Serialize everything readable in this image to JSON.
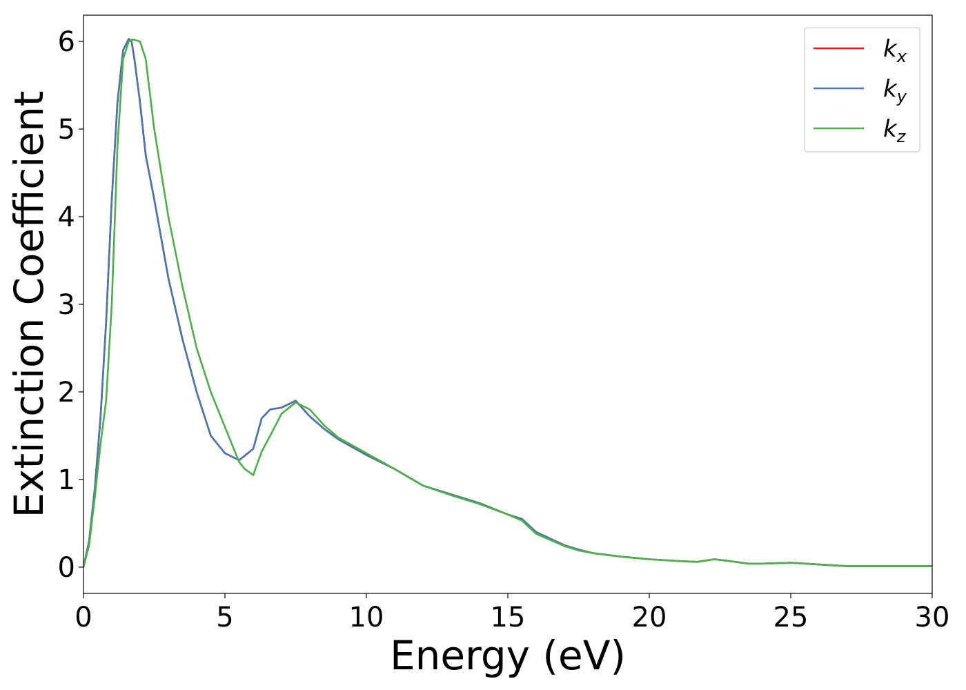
{
  "chart_data": {
    "type": "line",
    "title": "",
    "xlabel": "Energy (eV)",
    "ylabel": "Extinction Coefficient",
    "xlim": [
      0,
      30
    ],
    "ylim": [
      -0.3,
      6.3
    ],
    "xticks": [
      0,
      5,
      10,
      15,
      20,
      25,
      30
    ],
    "yticks": [
      0,
      1,
      2,
      3,
      4,
      5,
      6
    ],
    "grid": false,
    "legend_position": "top-right",
    "series": [
      {
        "name": "k_x",
        "label_base": "k",
        "label_sub": "x",
        "color": "#e41a1c",
        "x": [
          0,
          0.2,
          0.4,
          0.6,
          0.8,
          1.0,
          1.2,
          1.4,
          1.6,
          1.7,
          1.8,
          2.0,
          2.2,
          2.5,
          3.0,
          3.5,
          4.0,
          4.5,
          5.0,
          5.5,
          6.0,
          6.3,
          6.6,
          7.0,
          7.5,
          8.0,
          8.5,
          9.0,
          10.0,
          11.0,
          12.0,
          13.0,
          14.0,
          15.0,
          15.5,
          16.0,
          17.0,
          17.5,
          18.0,
          19.0,
          20.0,
          21.0,
          21.7,
          22.3,
          22.8,
          23.5,
          24.0,
          25.0,
          25.5,
          26.0,
          27.0,
          28.0,
          30.0
        ],
        "y": [
          0.0,
          0.3,
          0.9,
          1.7,
          2.8,
          4.2,
          5.3,
          5.9,
          6.03,
          6.0,
          5.8,
          5.3,
          4.7,
          4.2,
          3.3,
          2.6,
          2.0,
          1.5,
          1.3,
          1.22,
          1.35,
          1.7,
          1.8,
          1.82,
          1.9,
          1.72,
          1.58,
          1.46,
          1.28,
          1.12,
          0.93,
          0.83,
          0.73,
          0.6,
          0.55,
          0.4,
          0.25,
          0.2,
          0.16,
          0.12,
          0.09,
          0.07,
          0.06,
          0.09,
          0.07,
          0.04,
          0.04,
          0.05,
          0.04,
          0.03,
          0.01,
          0.01,
          0.01
        ]
      },
      {
        "name": "k_y",
        "label_base": "k",
        "label_sub": "y",
        "color": "#4a76b0",
        "x": [
          0,
          0.2,
          0.4,
          0.6,
          0.8,
          1.0,
          1.2,
          1.4,
          1.6,
          1.7,
          1.8,
          2.0,
          2.2,
          2.5,
          3.0,
          3.5,
          4.0,
          4.5,
          5.0,
          5.5,
          6.0,
          6.3,
          6.6,
          7.0,
          7.5,
          8.0,
          8.5,
          9.0,
          10.0,
          11.0,
          12.0,
          13.0,
          14.0,
          15.0,
          15.5,
          16.0,
          17.0,
          17.5,
          18.0,
          19.0,
          20.0,
          21.0,
          21.7,
          22.3,
          22.8,
          23.5,
          24.0,
          25.0,
          25.5,
          26.0,
          27.0,
          28.0,
          30.0
        ],
        "y": [
          0.0,
          0.3,
          0.9,
          1.7,
          2.8,
          4.2,
          5.3,
          5.9,
          6.03,
          6.0,
          5.8,
          5.3,
          4.7,
          4.2,
          3.3,
          2.6,
          2.0,
          1.5,
          1.3,
          1.22,
          1.35,
          1.7,
          1.8,
          1.82,
          1.9,
          1.72,
          1.58,
          1.46,
          1.28,
          1.12,
          0.93,
          0.83,
          0.73,
          0.6,
          0.55,
          0.4,
          0.25,
          0.2,
          0.16,
          0.12,
          0.09,
          0.07,
          0.06,
          0.09,
          0.07,
          0.04,
          0.04,
          0.05,
          0.04,
          0.03,
          0.01,
          0.01,
          0.01
        ]
      },
      {
        "name": "k_z",
        "label_base": "k",
        "label_sub": "z",
        "color": "#4daf4a",
        "x": [
          0,
          0.2,
          0.4,
          0.6,
          0.8,
          1.0,
          1.2,
          1.4,
          1.6,
          1.7,
          1.8,
          2.0,
          2.2,
          2.5,
          3.0,
          3.5,
          4.0,
          4.5,
          5.0,
          5.5,
          5.7,
          6.0,
          6.3,
          6.6,
          7.0,
          7.5,
          8.0,
          8.5,
          9.0,
          10.0,
          11.0,
          12.0,
          13.0,
          14.0,
          15.0,
          15.5,
          16.0,
          17.0,
          17.5,
          18.0,
          19.0,
          20.0,
          21.0,
          21.7,
          22.3,
          22.8,
          23.5,
          24.0,
          25.0,
          25.5,
          26.0,
          27.0,
          28.0,
          30.0
        ],
        "y": [
          0.0,
          0.25,
          0.8,
          1.4,
          1.9,
          3.0,
          4.8,
          5.8,
          6.0,
          6.02,
          6.02,
          6.0,
          5.8,
          5.0,
          4.0,
          3.2,
          2.5,
          2.0,
          1.6,
          1.2,
          1.12,
          1.05,
          1.32,
          1.5,
          1.75,
          1.88,
          1.8,
          1.62,
          1.48,
          1.3,
          1.12,
          0.93,
          0.82,
          0.72,
          0.6,
          0.53,
          0.38,
          0.24,
          0.19,
          0.16,
          0.12,
          0.09,
          0.07,
          0.06,
          0.09,
          0.07,
          0.04,
          0.04,
          0.05,
          0.04,
          0.03,
          0.01,
          0.01,
          0.01
        ]
      }
    ]
  }
}
